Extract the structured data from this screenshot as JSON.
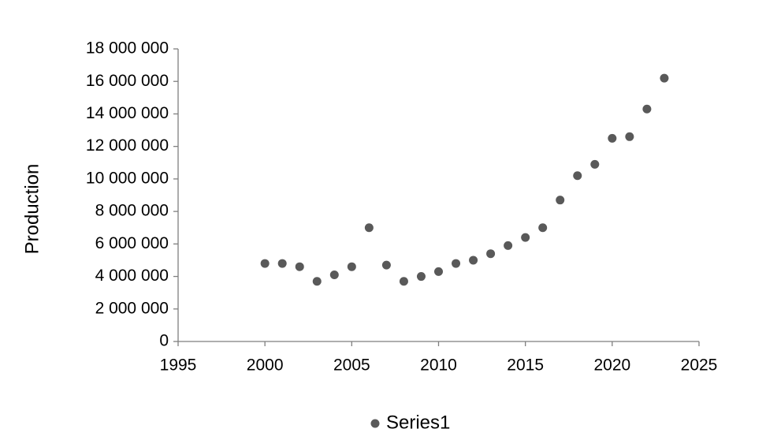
{
  "chart_data": {
    "type": "scatter",
    "y_label": "Production",
    "x": [
      2000,
      2001,
      2002,
      2003,
      2004,
      2005,
      2006,
      2007,
      2008,
      2009,
      2010,
      2011,
      2012,
      2013,
      2014,
      2015,
      2016,
      2017,
      2018,
      2019,
      2020,
      2021,
      2022,
      2023
    ],
    "series": [
      {
        "name": "Series1",
        "color": "#595959",
        "values": [
          4800000,
          4800000,
          4600000,
          3700000,
          4100000,
          4600000,
          7000000,
          4700000,
          3700000,
          4000000,
          4300000,
          4800000,
          5000000,
          5400000,
          5900000,
          6400000,
          7000000,
          8700000,
          10200000,
          10900000,
          12500000,
          12600000,
          14300000,
          16200000
        ]
      }
    ],
    "xlim": [
      1995,
      2025
    ],
    "xticks": [
      1995,
      2000,
      2005,
      2010,
      2015,
      2020,
      2025
    ],
    "ylim": [
      0,
      18000000
    ],
    "yticks": [
      0,
      {
        "value": 2000000,
        "label": "2 000 000"
      },
      {
        "value": 4000000,
        "label": "4 000 000"
      },
      {
        "value": 6000000,
        "label": "6 000 000"
      },
      {
        "value": 8000000,
        "label": "8 000 000"
      },
      {
        "value": 10000000,
        "label": "10 000 000"
      },
      {
        "value": 12000000,
        "label": "12 000 000"
      },
      {
        "value": 14000000,
        "label": "14 000 000"
      },
      {
        "value": 16000000,
        "label": "16 000 000"
      },
      {
        "value": 18000000,
        "label": "18 000 000"
      }
    ],
    "grid": false,
    "legend": "bottom"
  }
}
